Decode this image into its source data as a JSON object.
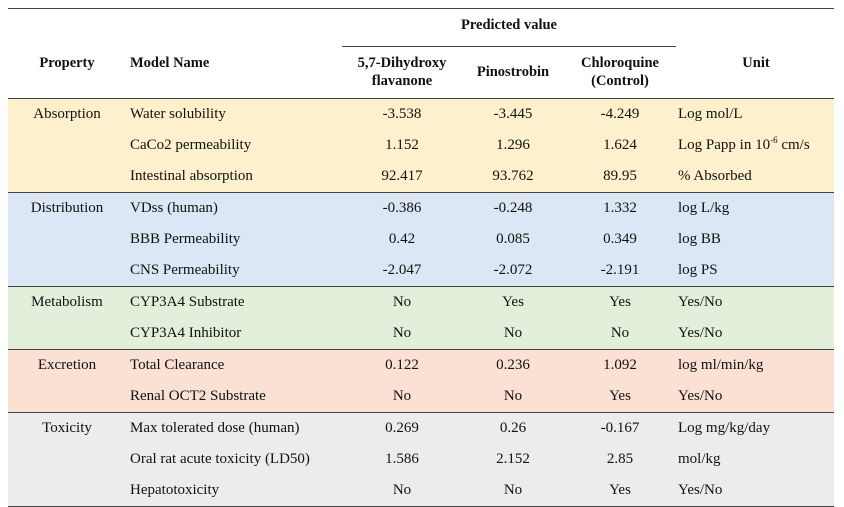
{
  "header": {
    "property": "Property",
    "model_name": "Model Name",
    "predicted_value": "Predicted value",
    "compound1_line1": "5,7-Dihydroxy",
    "compound1_line2": "flavanone",
    "compound2": "Pinostrobin",
    "compound3_line1": "Chloroquine",
    "compound3_line2": "(Control)",
    "unit": "Unit"
  },
  "groups": [
    {
      "property": "Absorption",
      "color": "#fdf0cc",
      "rows": [
        {
          "model": "Water solubility",
          "v1": "-3.538",
          "v2": "-3.445",
          "v3": "-4.249",
          "unit": "Log mol/L"
        },
        {
          "model": "CaCo2 permeability",
          "v1": "1.152",
          "v2": "1.296",
          "v3": "1.624",
          "unit_pre": "Log Papp in 10",
          "unit_sup": "-6",
          "unit_post": " cm/s"
        },
        {
          "model": "Intestinal absorption",
          "v1": "92.417",
          "v2": "93.762",
          "v3": "89.95",
          "unit": "% Absorbed"
        }
      ]
    },
    {
      "property": "Distribution",
      "color": "#dbe7f4",
      "rows": [
        {
          "model": "VDss (human)",
          "v1": "-0.386",
          "v2": "-0.248",
          "v3": "1.332",
          "unit": "log L/kg"
        },
        {
          "model": "BBB Permeability",
          "v1": "0.42",
          "v2": "0.085",
          "v3": "0.349",
          "unit": "log BB"
        },
        {
          "model": "CNS Permeability",
          "v1": "-2.047",
          "v2": "-2.072",
          "v3": "-2.191",
          "unit": "log PS"
        }
      ]
    },
    {
      "property": "Metabolism",
      "color": "#e2efda",
      "rows": [
        {
          "model": "CYP3A4 Substrate",
          "v1": "No",
          "v2": "Yes",
          "v3": "Yes",
          "unit": "Yes/No"
        },
        {
          "model": "CYP3A4 Inhibitor",
          "v1": "No",
          "v2": "No",
          "v3": "No",
          "unit": "Yes/No"
        }
      ]
    },
    {
      "property": "Excretion",
      "color": "#fbe0d4",
      "rows": [
        {
          "model": "Total Clearance",
          "v1": "0.122",
          "v2": "0.236",
          "v3": "1.092",
          "unit": "log ml/min/kg"
        },
        {
          "model": "Renal OCT2 Substrate",
          "v1": "No",
          "v2": "No",
          "v3": "Yes",
          "unit": "Yes/No"
        }
      ]
    },
    {
      "property": "Toxicity",
      "color": "#ececec",
      "rows": [
        {
          "model": "Max tolerated dose (human)",
          "v1": "0.269",
          "v2": "0.26",
          "v3": "-0.167",
          "unit": "Log mg/kg/day"
        },
        {
          "model": "Oral rat acute toxicity (LD50)",
          "v1": "1.586",
          "v2": "2.152",
          "v3": "2.85",
          "unit": "mol/kg"
        },
        {
          "model": "Hepatotoxicity",
          "v1": "No",
          "v2": "No",
          "v3": "Yes",
          "unit": "Yes/No"
        }
      ]
    }
  ]
}
